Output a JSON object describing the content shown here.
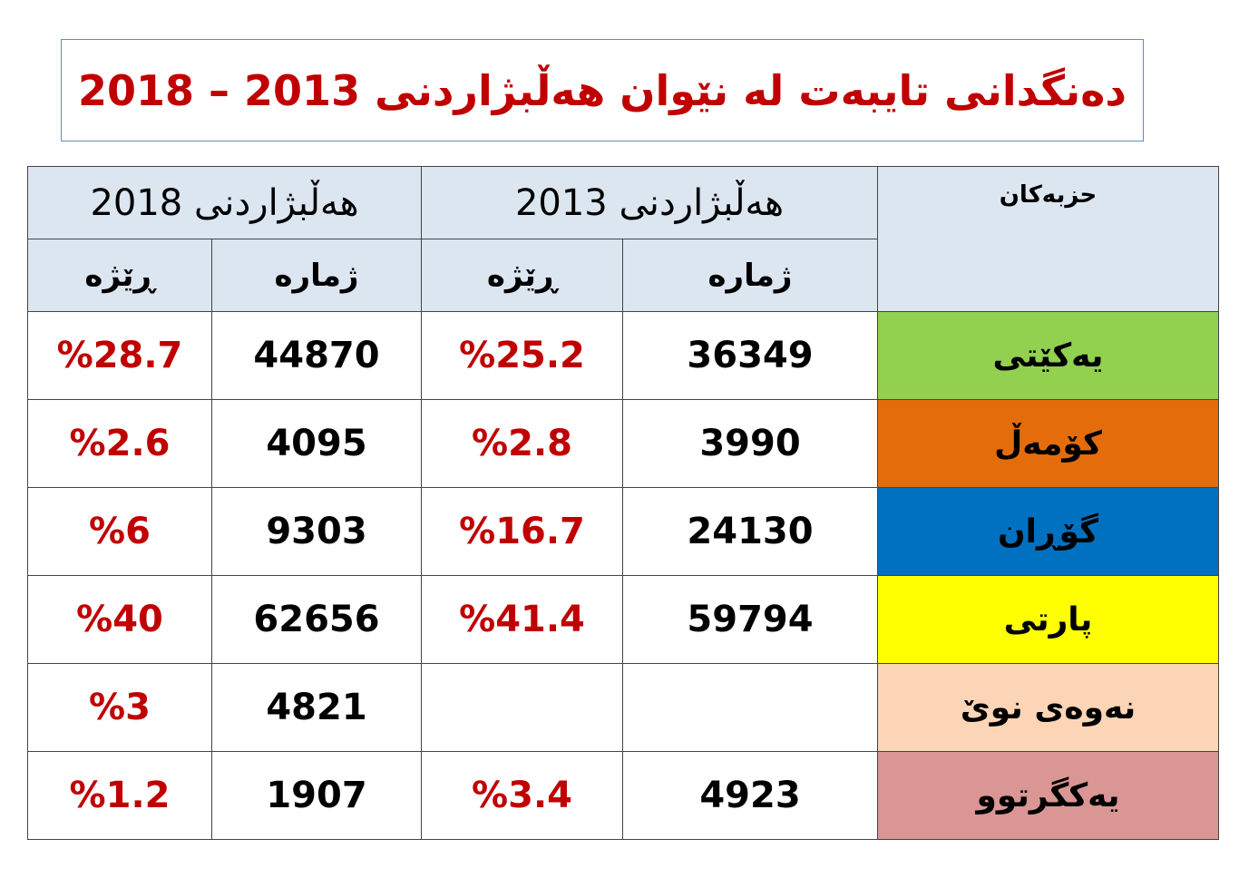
{
  "header": {
    "title": "دەنگدانی تایبەت لە نێوان هەڵبژاردنی 2013 – 2018"
  },
  "table": {
    "group_headers": [
      "هەڵبژاردنی 2018",
      "هەڵبژاردنی 2013",
      "حزبەکان"
    ],
    "sub_headers": [
      "ڕێژە",
      "ژمارە",
      "ڕێژە",
      "ژمارە"
    ],
    "rows": [
      {
        "party": "یەکێتی",
        "color": "#92d050",
        "p2018": "%28.7",
        "n2018": "44870",
        "p2013": "%25.2",
        "n2013": "36349"
      },
      {
        "party": "کۆمەڵ",
        "color": "#e46c0a",
        "p2018": "%2.6",
        "n2018": "4095",
        "p2013": "%2.8",
        "n2013": "3990"
      },
      {
        "party": "گۆڕان",
        "color": "#0070c0",
        "p2018": "%6",
        "n2018": "9303",
        "p2013": "%16.7",
        "n2013": "24130"
      },
      {
        "party": "پارتی",
        "color": "#ffff00",
        "p2018": "%40",
        "n2018": "62656",
        "p2013": "%41.4",
        "n2013": "59794"
      },
      {
        "party": "نەوەی نوێ",
        "color": "#fbd5b5",
        "p2018": "%3",
        "n2018": "4821",
        "p2013": null,
        "n2013": null
      },
      {
        "party": "یەکگرتوو",
        "color": "#d99694",
        "p2018": "%1.2",
        "n2018": "1907",
        "p2013": "%3.4",
        "n2013": "4923"
      }
    ]
  }
}
